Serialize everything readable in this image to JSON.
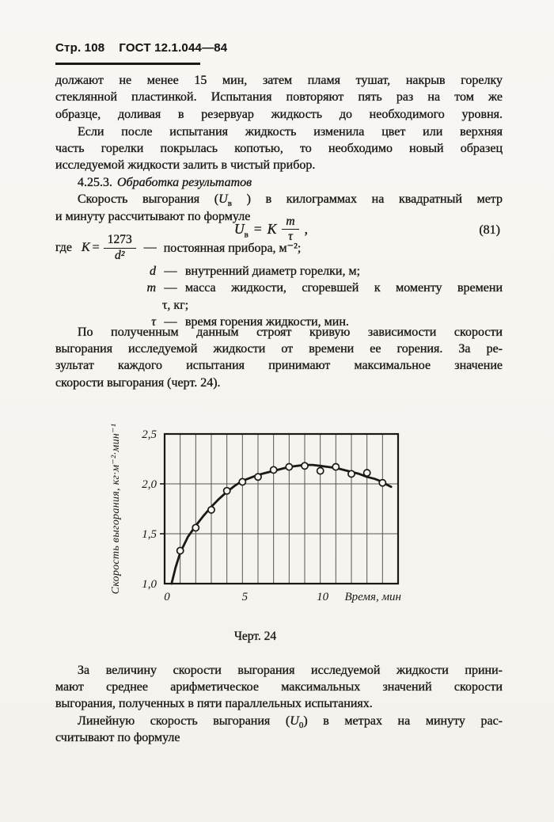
{
  "header": {
    "page_label": "Стр. 108",
    "doc_number": "ГОСТ 12.1.044—84"
  },
  "para_top": {
    "lines": [
      "должают не менее 15 мин, затем пламя тушат, накрыв горелку",
      "стеклянной пластинкой. Испытания повторяют пять раз на том же",
      "образце, доливая в резервуар жидкость до необходимого уровня."
    ]
  },
  "para_if": {
    "lines": [
      "Если после испытания жидкость изменила цвет или верхняя",
      "часть горелки покрылась копотью, то необходимо новый образец",
      "исследуемой жидкости залить в чистый прибор."
    ]
  },
  "section": {
    "number": "4.25.3.",
    "title": "Обработка результатов"
  },
  "para_speed": {
    "line1_pre": "Скорость выгорания (",
    "line1_var": "U",
    "line1_sub": "в",
    "line1_post": " ) в килограммах на квадратный метр",
    "line2": "и минуту рассчитывают по формуле"
  },
  "formula": {
    "var": "U",
    "var_sub": "в",
    "eq": "=",
    "coef": "K",
    "num": "m",
    "den": "τ",
    "comma": ",",
    "number": "(81)"
  },
  "where": {
    "label": "где",
    "k": {
      "var": "K",
      "eq": "=",
      "num": "1273",
      "den": "d²",
      "dash": "—",
      "text": "постоянная прибора, м⁻²;"
    },
    "d": {
      "sym": "d",
      "dash": "—",
      "text": "внутренний диаметр горелки, м;"
    },
    "m": {
      "sym": "m",
      "dash": "—",
      "text": "масса жидкости, сгоревшей к моменту времени",
      "text2": "τ, кг;"
    },
    "tau": {
      "sym": "τ",
      "dash": "—",
      "text": "время горения жидкости, мин."
    }
  },
  "para_data": {
    "lines": [
      "По полученным данным строят кривую зависимости скорости",
      "выгорания исследуемой жидкости от времени ее горения. За ре-",
      "зультат каждого испытания принимают максимальное значение",
      "скорости выгорания (черт. 24)."
    ]
  },
  "chart_data": {
    "type": "line",
    "title": "",
    "xlabel": "Время, мин",
    "ylabel": "Скорость выгорания, кг·м⁻²·мин⁻¹",
    "xlim": [
      0,
      15
    ],
    "ylim": [
      1.0,
      2.5
    ],
    "xticks": [
      {
        "value": 0,
        "label": "0"
      },
      {
        "value": 5,
        "label": "5"
      },
      {
        "value": 10,
        "label": "10"
      }
    ],
    "yticks": [
      {
        "value": 1.0,
        "label": "1,0"
      },
      {
        "value": 1.5,
        "label": "1,5"
      },
      {
        "value": 2.0,
        "label": "2,0"
      },
      {
        "value": 2.5,
        "label": "2,5"
      }
    ],
    "grid": {
      "visible": true,
      "x_step": 1,
      "y_step": 0.5
    },
    "series": [
      {
        "name": "data_points",
        "type": "scatter",
        "points": [
          [
            1,
            1.33
          ],
          [
            2,
            1.56
          ],
          [
            3,
            1.74
          ],
          [
            4,
            1.93
          ],
          [
            5,
            2.02
          ],
          [
            6,
            2.07
          ],
          [
            7,
            2.14
          ],
          [
            8,
            2.17
          ],
          [
            9,
            2.18
          ],
          [
            10,
            2.13
          ],
          [
            11,
            2.17
          ],
          [
            12,
            2.1
          ],
          [
            13,
            2.11
          ],
          [
            14,
            2.01
          ]
        ]
      },
      {
        "name": "fitted_curve",
        "type": "line",
        "points": [
          [
            0.45,
            1.0
          ],
          [
            0.7,
            1.16
          ],
          [
            1,
            1.31
          ],
          [
            1.5,
            1.47
          ],
          [
            2,
            1.58
          ],
          [
            2.5,
            1.68
          ],
          [
            3,
            1.77
          ],
          [
            3.5,
            1.85
          ],
          [
            4,
            1.92
          ],
          [
            4.5,
            1.98
          ],
          [
            5,
            2.03
          ],
          [
            5.5,
            2.06
          ],
          [
            6,
            2.09
          ],
          [
            6.5,
            2.11
          ],
          [
            7,
            2.13
          ],
          [
            7.5,
            2.15
          ],
          [
            8,
            2.17
          ],
          [
            8.5,
            2.18
          ],
          [
            9,
            2.19
          ],
          [
            9.5,
            2.19
          ],
          [
            10,
            2.18
          ],
          [
            10.5,
            2.17
          ],
          [
            11,
            2.16
          ],
          [
            11.5,
            2.14
          ],
          [
            12,
            2.12
          ],
          [
            12.5,
            2.1
          ],
          [
            13,
            2.07
          ],
          [
            13.5,
            2.05
          ],
          [
            14,
            2.02
          ],
          [
            14.3,
            1.99
          ],
          [
            14.55,
            1.97
          ]
        ]
      }
    ],
    "caption": "Черт. 24"
  },
  "para_value": {
    "lines": [
      "За величину скорости выгорания исследуемой жидкости прини-",
      "мают среднее арифметическое максимальных значений скорости",
      "выгорания, полученных в пяти параллельных испытаниях."
    ]
  },
  "para_linear": {
    "line1_pre": "Линейную скорость выгорания (",
    "line1_var": "U",
    "line1_sub": "0",
    "line1_post": ") в метрах на минуту рас-",
    "line2": "считывают по формуле"
  }
}
